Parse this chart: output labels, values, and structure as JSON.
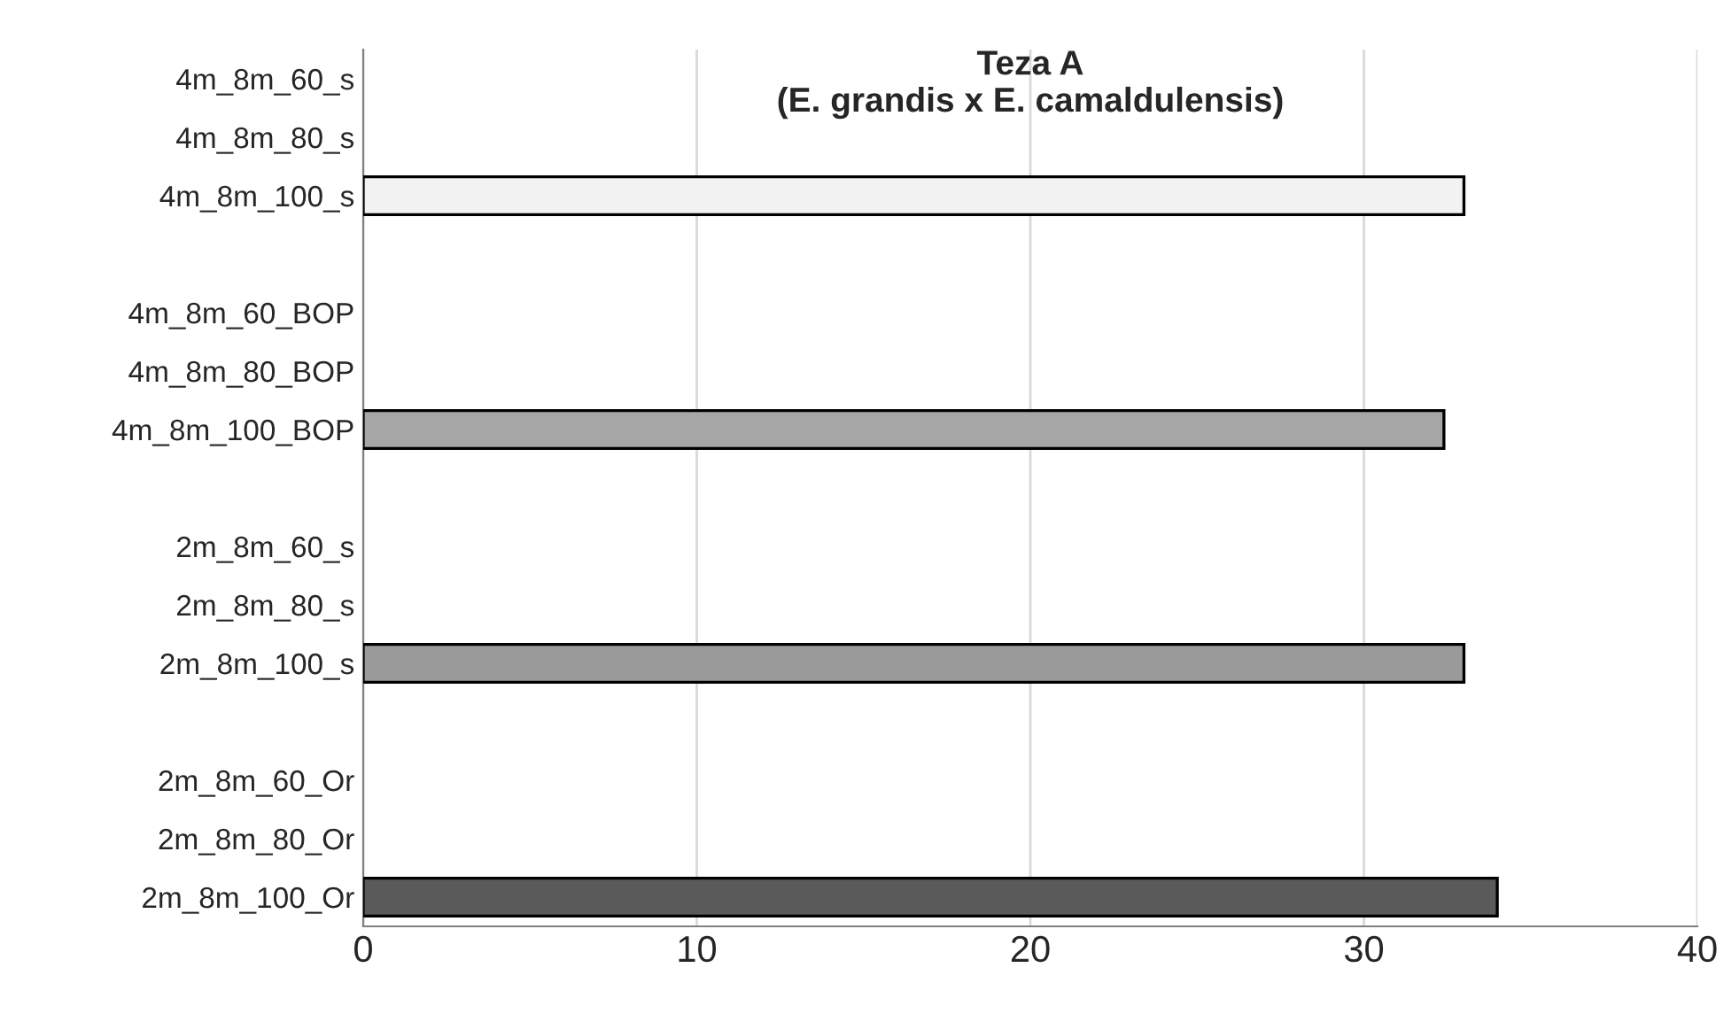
{
  "chart_data": {
    "type": "bar",
    "orientation": "horizontal",
    "title": "Teza A\n(E. grandis x E. camaldulensis)",
    "categories": [
      "4m_8m_60_s",
      "4m_8m_80_s",
      "4m_8m_100_s",
      null,
      "4m_8m_60_BOP",
      "4m_8m_80_BOP",
      "4m_8m_100_BOP",
      null,
      "2m_8m_60_s",
      "2m_8m_80_s",
      "2m_8m_100_s",
      null,
      "2m_8m_60_Or",
      "2m_8m_80_Or",
      "2m_8m_100_Or"
    ],
    "values": [
      null,
      null,
      33.0,
      null,
      null,
      null,
      32.4,
      null,
      null,
      null,
      33.0,
      null,
      null,
      null,
      34.0
    ],
    "colors": [
      "#f2f2f2",
      "#f2f2f2",
      "#f2f2f2",
      "#ffffff",
      "#a6a6a6",
      "#a6a6a6",
      "#a6a6a6",
      "#ffffff",
      "#9a9a9a",
      "#9a9a9a",
      "#9a9a9a",
      "#ffffff",
      "#5a5a5a",
      "#5a5a5a",
      "#5a5a5a"
    ],
    "xlim": [
      0,
      40
    ],
    "xticks": [
      0,
      10,
      20,
      30,
      40
    ],
    "grid": "x",
    "legend": false
  }
}
